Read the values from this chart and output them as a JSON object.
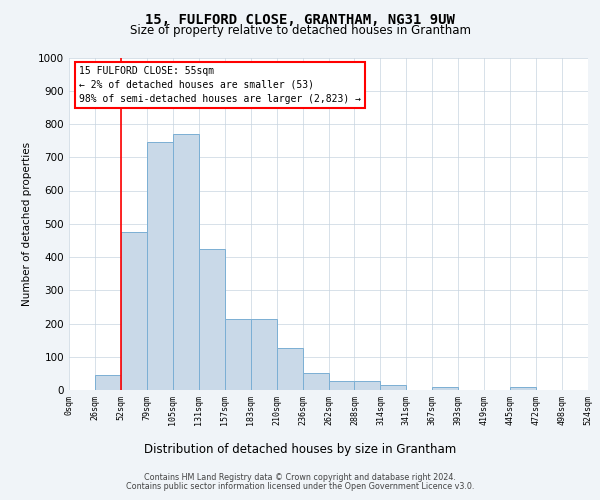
{
  "title": "15, FULFORD CLOSE, GRANTHAM, NG31 9UW",
  "subtitle": "Size of property relative to detached houses in Grantham",
  "xlabel": "Distribution of detached houses by size in Grantham",
  "ylabel": "Number of detached properties",
  "bar_values": [
    0,
    45,
    475,
    745,
    770,
    425,
    215,
    215,
    125,
    50,
    27,
    27,
    15,
    0,
    8,
    0,
    0,
    8,
    0,
    0
  ],
  "bar_labels": [
    "0sqm",
    "26sqm",
    "52sqm",
    "79sqm",
    "105sqm",
    "131sqm",
    "157sqm",
    "183sqm",
    "210sqm",
    "236sqm",
    "262sqm",
    "288sqm",
    "314sqm",
    "341sqm",
    "367sqm",
    "393sqm",
    "419sqm",
    "445sqm",
    "472sqm",
    "498sqm",
    "524sqm"
  ],
  "bar_color": "#c9d9e8",
  "bar_edge_color": "#7bafd4",
  "ylim": [
    0,
    1000
  ],
  "yticks": [
    0,
    100,
    200,
    300,
    400,
    500,
    600,
    700,
    800,
    900,
    1000
  ],
  "vline_x": 1.5,
  "annotation_title": "15 FULFORD CLOSE: 55sqm",
  "annotation_line1": "← 2% of detached houses are smaller (53)",
  "annotation_line2": "98% of semi-detached houses are larger (2,823) →",
  "footer1": "Contains HM Land Registry data © Crown copyright and database right 2024.",
  "footer2": "Contains public sector information licensed under the Open Government Licence v3.0.",
  "fig_bg_color": "#f0f4f8",
  "plot_bg_color": "#ffffff",
  "grid_color": "#c8d4e0"
}
